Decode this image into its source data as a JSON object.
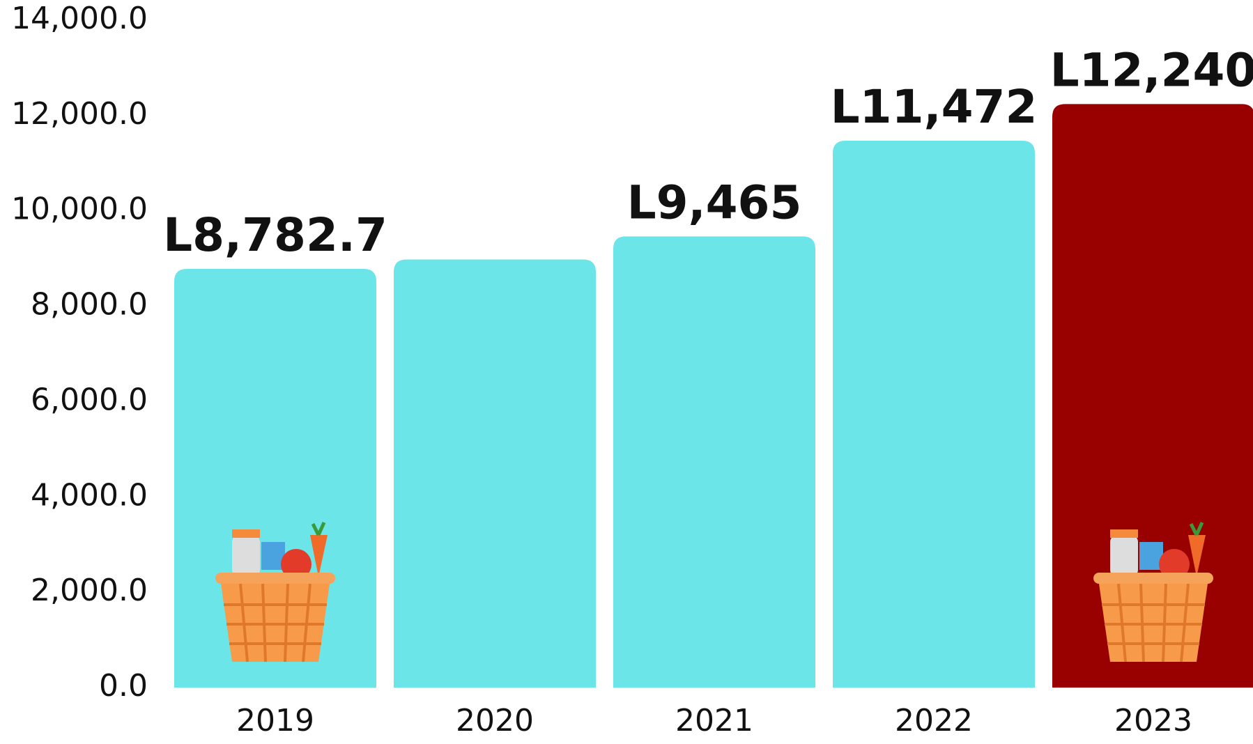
{
  "chart_data": {
    "type": "bar",
    "categories": [
      "2019",
      "2020",
      "2021",
      "2022",
      "2023"
    ],
    "values": [
      8782.7,
      8980,
      9465,
      11472,
      12240
    ],
    "value_labels": [
      "L8,782.7",
      null,
      "L9,465",
      "L11,472",
      "L12,240"
    ],
    "colors": [
      "#6ce5e8",
      "#6ce5e8",
      "#6ce5e8",
      "#6ce5e8",
      "#990000"
    ],
    "ylim": [
      0,
      14000
    ],
    "yticks": [
      {
        "value": 0,
        "label": "0.0"
      },
      {
        "value": 2000,
        "label": "2,000.0"
      },
      {
        "value": 4000,
        "label": "4,000.0"
      },
      {
        "value": 6000,
        "label": "6,000.0"
      },
      {
        "value": 8000,
        "label": "8,000.0"
      },
      {
        "value": 10000,
        "label": "10,000.0"
      },
      {
        "value": 12000,
        "label": "12,000.0"
      },
      {
        "value": 14000,
        "label": "14,000.0"
      }
    ],
    "grid": false
  }
}
